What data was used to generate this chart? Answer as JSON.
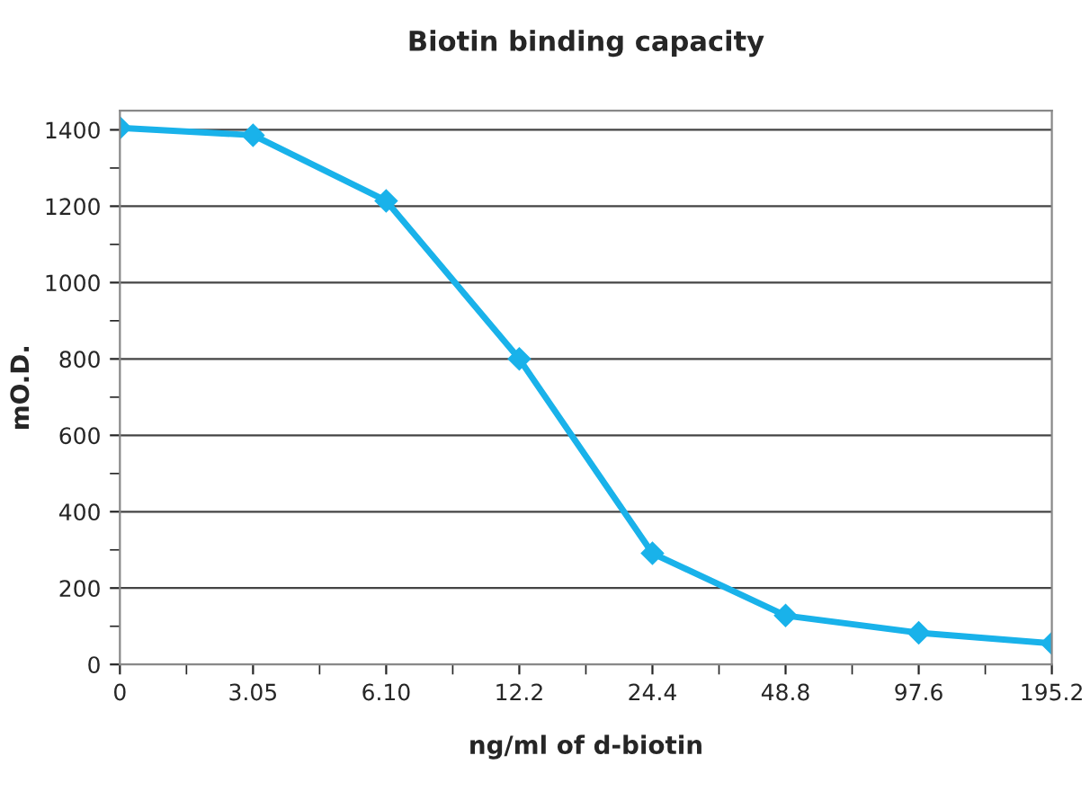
{
  "chart_data": {
    "type": "line",
    "title": "Biotin binding capacity",
    "xlabel": "ng/ml of d-biotin",
    "ylabel": "mO.D.",
    "categories": [
      "0",
      "3.05",
      "6.10",
      "12.2",
      "24.4",
      "48.8",
      "97.6",
      "195.2"
    ],
    "series": [
      {
        "color": "#19b2ea",
        "values": [
          1405,
          1386,
          1214,
          800,
          291,
          128,
          83,
          55
        ]
      }
    ],
    "ylim": [
      0,
      1450
    ],
    "yticks": [
      0,
      200,
      400,
      600,
      800,
      1000,
      1200,
      1400
    ],
    "grid": "y",
    "marker": "diamond",
    "line_style": "solid"
  }
}
